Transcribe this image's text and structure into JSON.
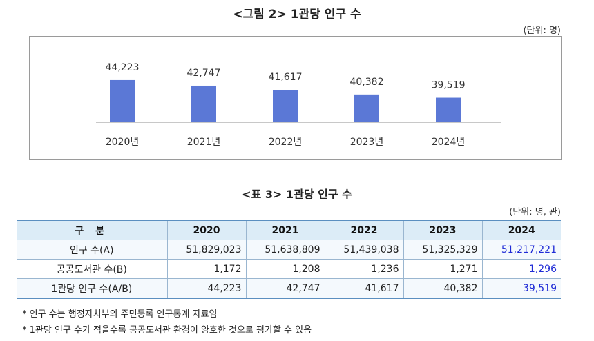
{
  "figure": {
    "title": "<그림 2> 1관당 인구 수",
    "unit": "(단위: 명)"
  },
  "colors": {
    "bar": "#5b78d6",
    "axis": "#c8c8c8",
    "highlight": "#1f2bd6",
    "table_header_bg": "#dcecf7"
  },
  "chart_data": {
    "type": "bar",
    "categories": [
      "2020년",
      "2021년",
      "2022년",
      "2023년",
      "2024년"
    ],
    "values": [
      44223,
      42747,
      41617,
      40382,
      39519
    ],
    "value_labels": [
      "44,223",
      "42,747",
      "41,617",
      "40,382",
      "39,519"
    ],
    "title": "<그림 2> 1관당 인구 수",
    "xlabel": "",
    "ylabel": "",
    "ylim": [
      33000,
      45500
    ],
    "grid": false,
    "legend": "none"
  },
  "table": {
    "title": "<표 3> 1관당 인구 수",
    "unit": "(단위: 명, 관)",
    "headers": [
      "구 분",
      "2020",
      "2021",
      "2022",
      "2023",
      "2024"
    ],
    "rows": [
      {
        "label": "인구 수(A)",
        "values": [
          "51,829,023",
          "51,638,809",
          "51,439,038",
          "51,325,329",
          "51,217,221"
        ]
      },
      {
        "label": "공공도서관 수(B)",
        "values": [
          "1,172",
          "1,208",
          "1,236",
          "1,271",
          "1,296"
        ]
      },
      {
        "label": "1관당 인구 수(A/B)",
        "values": [
          "44,223",
          "42,747",
          "41,617",
          "40,382",
          "39,519"
        ]
      }
    ]
  },
  "notes": [
    "*  인구 수는 행정자치부의 주민등록 인구통계 자료임",
    "*  1관당 인구 수가 적을수록 공공도서관 환경이 양호한 것으로 평가할 수 있음"
  ]
}
